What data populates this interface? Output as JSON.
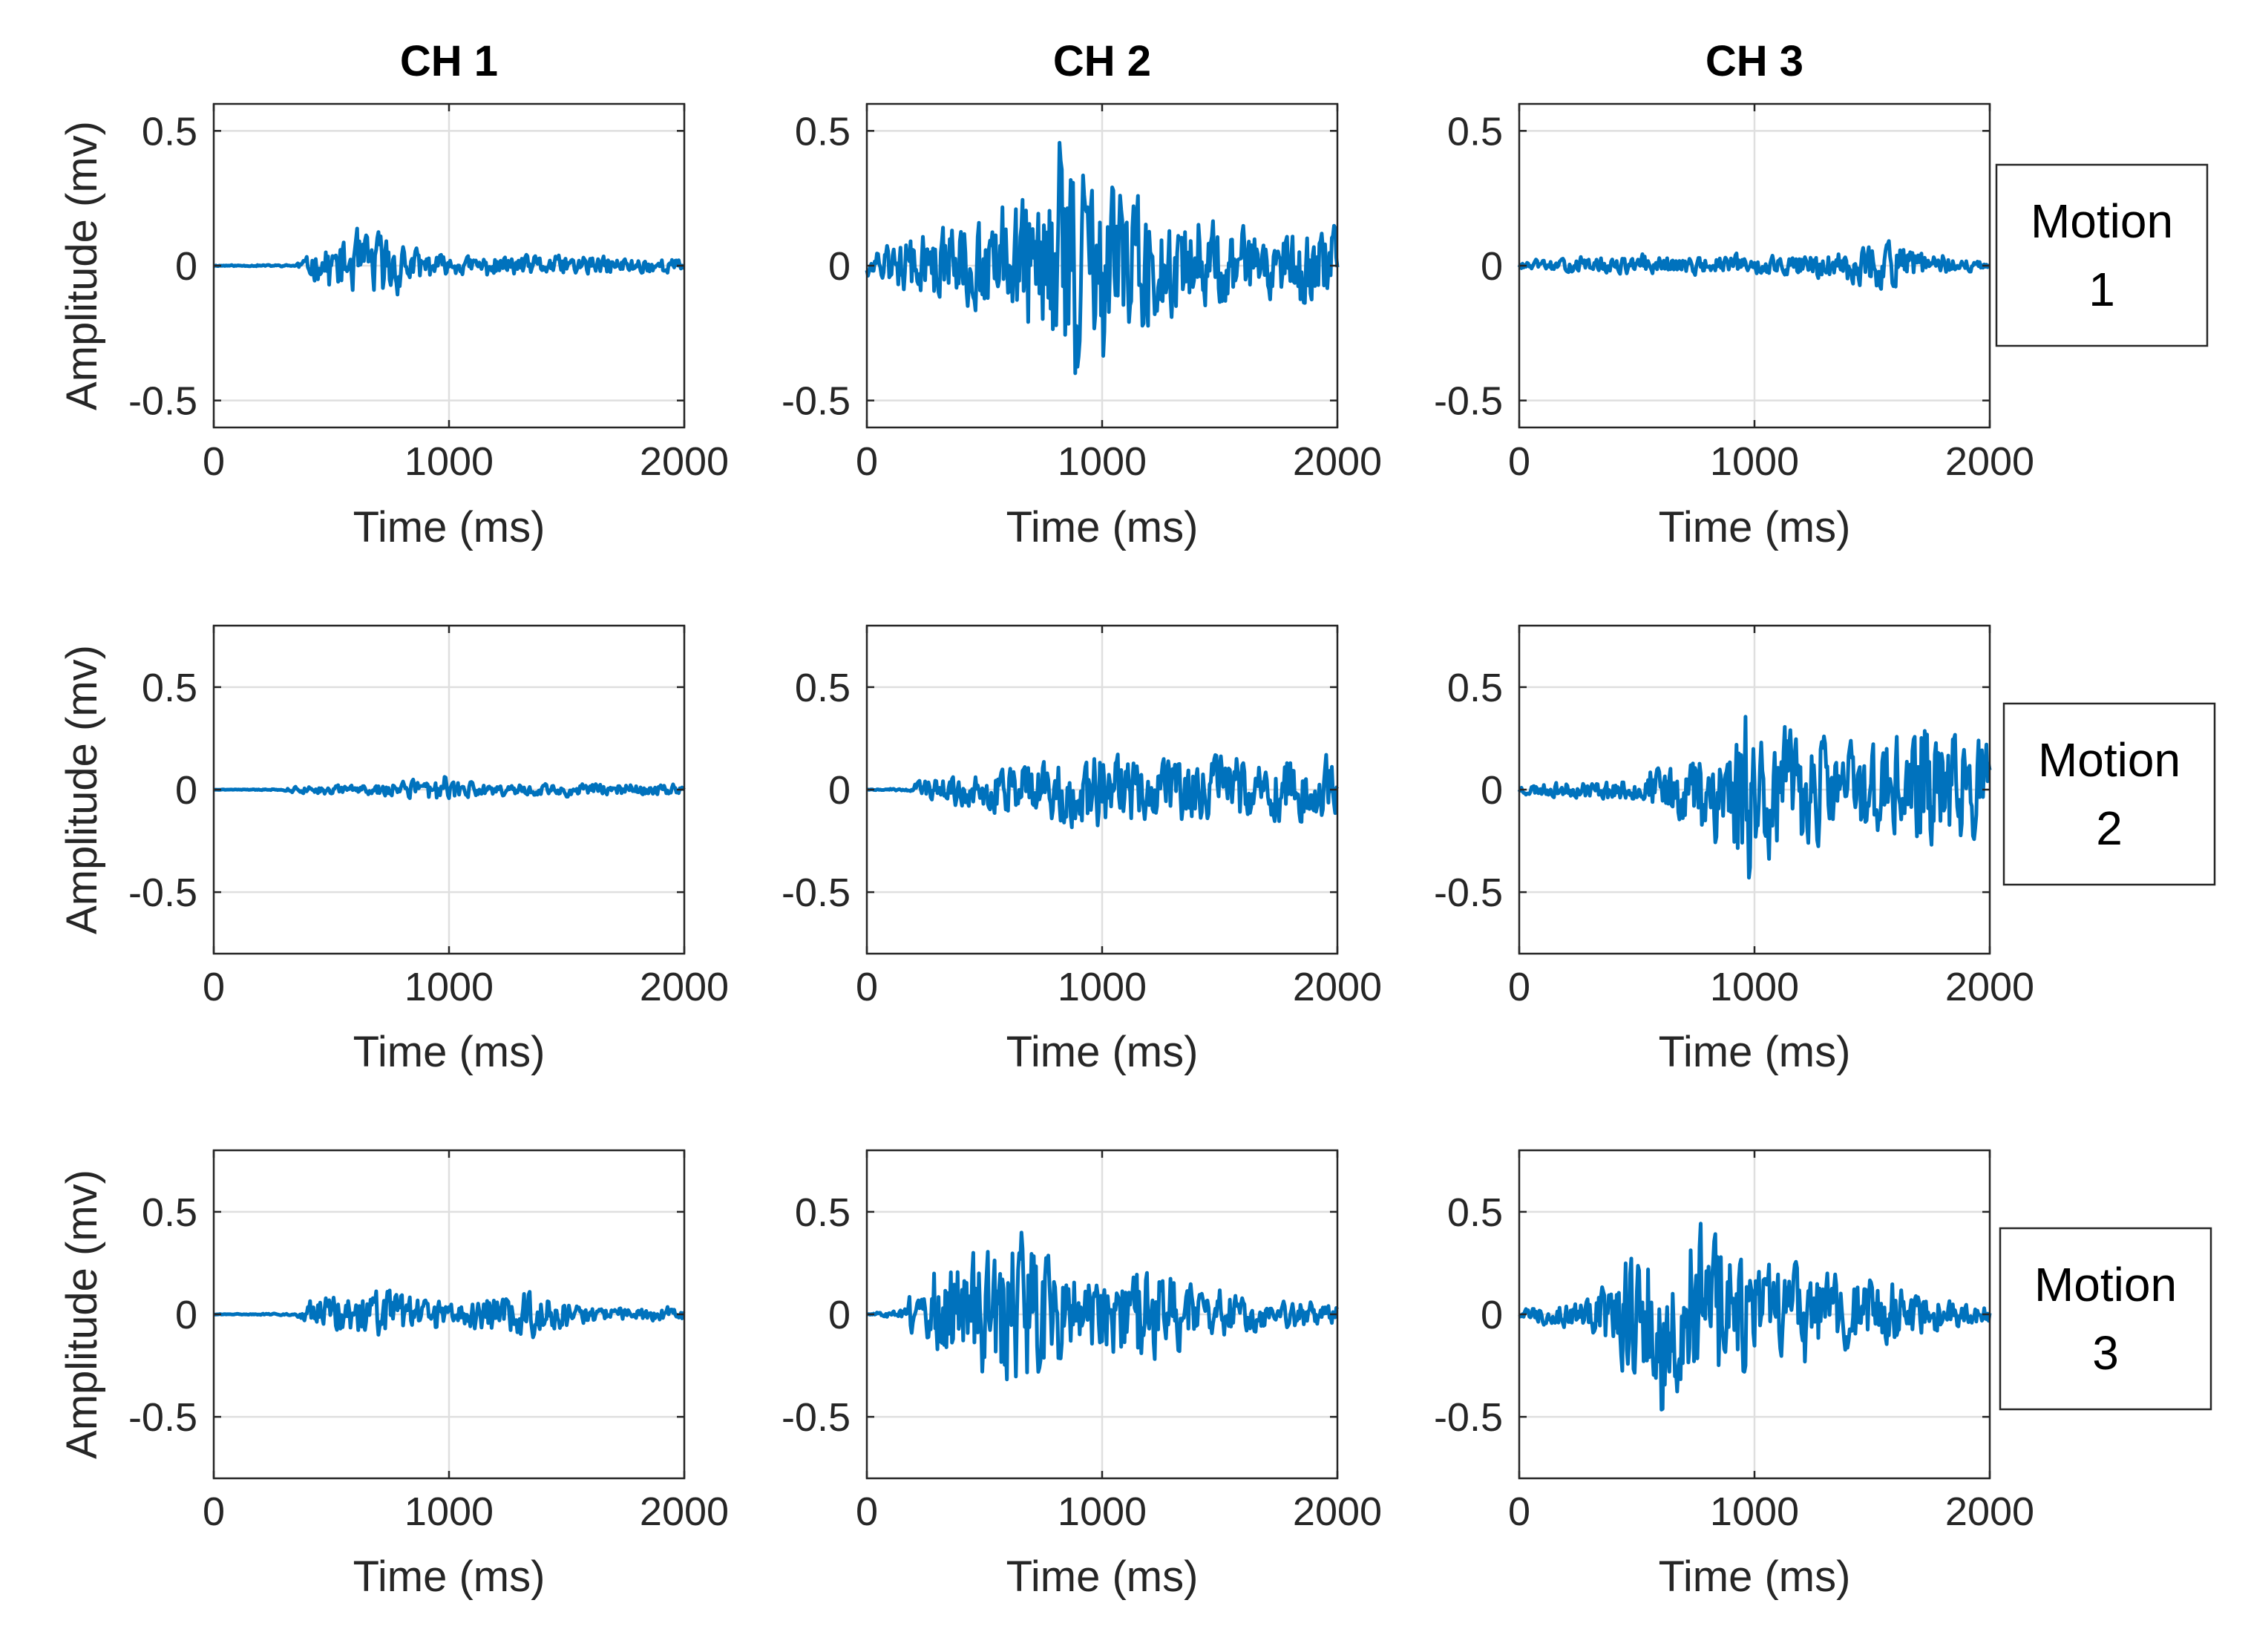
{
  "figure": {
    "channels": [
      "CH 1",
      "CH 2",
      "CH 3"
    ],
    "motions": [
      {
        "line1": "Motion",
        "line2": "1"
      },
      {
        "line1": "Motion",
        "line2": "2"
      },
      {
        "line1": "Motion",
        "line2": "3"
      }
    ],
    "ylabel": "Amplitude (mv)",
    "xlabel": "Time (ms)",
    "line_color": "#0072BD"
  },
  "chart_data": [
    {
      "type": "line",
      "channel": "CH 1",
      "motion": "Motion 1",
      "xlabel": "Time (ms)",
      "ylabel": "Amplitude (mv)",
      "xlim": [
        0,
        2000
      ],
      "ylim": [
        -0.6,
        0.6
      ],
      "xticks": [
        0,
        1000,
        2000
      ],
      "yticks": [
        -0.5,
        0,
        0.5
      ],
      "yticklabels": [
        "-0.5",
        "0",
        "0.5"
      ],
      "grid": true,
      "series": [
        {
          "name": "CH 1",
          "onset": 350,
          "envelope": [
            [
              0,
              0.01
            ],
            [
              350,
              0.02
            ],
            [
              500,
              0.12
            ],
            [
              700,
              0.2
            ],
            [
              850,
              0.1
            ],
            [
              1000,
              0.05
            ],
            [
              1400,
              0.06
            ],
            [
              2000,
              0.04
            ]
          ],
          "seed": 11
        }
      ]
    },
    {
      "type": "line",
      "channel": "CH 2",
      "motion": "Motion 1",
      "xlabel": "Time (ms)",
      "ylabel": "Amplitude (mv)",
      "xlim": [
        0,
        2000
      ],
      "ylim": [
        -0.6,
        0.6
      ],
      "xticks": [
        0,
        1000,
        2000
      ],
      "yticks": [
        -0.5,
        0,
        0.5
      ],
      "yticklabels": [
        "-0.5",
        "0",
        "0.5"
      ],
      "grid": true,
      "series": [
        {
          "name": "CH 2",
          "onset": 0,
          "envelope": [
            [
              0,
              0.06
            ],
            [
              300,
              0.22
            ],
            [
              600,
              0.3
            ],
            [
              850,
              0.6
            ],
            [
              1050,
              0.45
            ],
            [
              1300,
              0.3
            ],
            [
              1700,
              0.18
            ],
            [
              2000,
              0.22
            ]
          ],
          "seed": 12
        }
      ]
    },
    {
      "type": "line",
      "channel": "CH 3",
      "motion": "Motion 1",
      "xlabel": "Time (ms)",
      "ylabel": "Amplitude (mv)",
      "xlim": [
        0,
        2000
      ],
      "ylim": [
        -0.6,
        0.6
      ],
      "xticks": [
        0,
        1000,
        2000
      ],
      "yticks": [
        -0.5,
        0,
        0.5
      ],
      "yticklabels": [
        "-0.5",
        "0",
        "0.5"
      ],
      "grid": true,
      "series": [
        {
          "name": "CH 3",
          "onset": 0,
          "envelope": [
            [
              0,
              0.02
            ],
            [
              400,
              0.05
            ],
            [
              1000,
              0.05
            ],
            [
              1300,
              0.07
            ],
            [
              1550,
              0.14
            ],
            [
              1800,
              0.05
            ],
            [
              2000,
              0.02
            ]
          ],
          "seed": 13
        }
      ]
    },
    {
      "type": "line",
      "channel": "CH 1",
      "motion": "Motion 2",
      "xlabel": "Time (ms)",
      "ylabel": "Amplitude (mv)",
      "xlim": [
        0,
        2000
      ],
      "ylim": [
        -0.8,
        0.8
      ],
      "xticks": [
        0,
        1000,
        2000
      ],
      "yticks": [
        -0.5,
        0,
        0.5
      ],
      "yticklabels": [
        "-0.5",
        "0",
        "0.5"
      ],
      "grid": true,
      "series": [
        {
          "name": "CH 1",
          "onset": 300,
          "envelope": [
            [
              0,
              0.005
            ],
            [
              300,
              0.02
            ],
            [
              700,
              0.04
            ],
            [
              950,
              0.09
            ],
            [
              1200,
              0.04
            ],
            [
              1650,
              0.05
            ],
            [
              2000,
              0.03
            ]
          ],
          "seed": 21
        }
      ]
    },
    {
      "type": "line",
      "channel": "CH 2",
      "motion": "Motion 2",
      "xlabel": "Time (ms)",
      "ylabel": "Amplitude (mv)",
      "xlim": [
        0,
        2000
      ],
      "ylim": [
        -0.8,
        0.8
      ],
      "xticks": [
        0,
        1000,
        2000
      ],
      "yticks": [
        -0.5,
        0,
        0.5
      ],
      "yticklabels": [
        "-0.5",
        "0",
        "0.5"
      ],
      "grid": true,
      "series": [
        {
          "name": "CH 2",
          "onset": 200,
          "envelope": [
            [
              0,
              0.005
            ],
            [
              200,
              0.05
            ],
            [
              400,
              0.12
            ],
            [
              700,
              0.18
            ],
            [
              950,
              0.32
            ],
            [
              1300,
              0.2
            ],
            [
              1550,
              0.25
            ],
            [
              1800,
              0.22
            ],
            [
              2000,
              0.22
            ]
          ],
          "seed": 22
        }
      ]
    },
    {
      "type": "line",
      "channel": "CH 3",
      "motion": "Motion 2",
      "xlabel": "Time (ms)",
      "ylabel": "Amplitude (mv)",
      "xlim": [
        0,
        2000
      ],
      "ylim": [
        -0.8,
        0.8
      ],
      "xticks": [
        0,
        1000,
        2000
      ],
      "yticks": [
        -0.5,
        0,
        0.5
      ],
      "yticklabels": [
        "-0.5",
        "0",
        "0.5"
      ],
      "grid": true,
      "series": [
        {
          "name": "CH 3",
          "onset": 0,
          "envelope": [
            [
              0,
              0.04
            ],
            [
              500,
              0.08
            ],
            [
              700,
              0.25
            ],
            [
              950,
              0.6
            ],
            [
              1200,
              0.4
            ],
            [
              1450,
              0.35
            ],
            [
              1700,
              0.45
            ],
            [
              2000,
              0.35
            ]
          ],
          "seed": 23
        }
      ]
    },
    {
      "type": "line",
      "channel": "CH 1",
      "motion": "Motion 3",
      "xlabel": "Time (ms)",
      "ylabel": "Amplitude (mv)",
      "xlim": [
        0,
        2000
      ],
      "ylim": [
        -0.8,
        0.8
      ],
      "xticks": [
        0,
        1000,
        2000
      ],
      "yticks": [
        -0.5,
        0,
        0.5
      ],
      "yticklabels": [
        "-0.5",
        "0",
        "0.5"
      ],
      "grid": true,
      "series": [
        {
          "name": "CH 1",
          "onset": 350,
          "envelope": [
            [
              0,
              0.005
            ],
            [
              350,
              0.03
            ],
            [
              500,
              0.15
            ],
            [
              750,
              0.18
            ],
            [
              1000,
              0.08
            ],
            [
              1300,
              0.18
            ],
            [
              1600,
              0.06
            ],
            [
              2000,
              0.04
            ]
          ],
          "seed": 31
        }
      ]
    },
    {
      "type": "line",
      "channel": "CH 2",
      "motion": "Motion 3",
      "xlabel": "Time (ms)",
      "ylabel": "Amplitude (mv)",
      "xlim": [
        0,
        2000
      ],
      "ylim": [
        -0.8,
        0.8
      ],
      "xticks": [
        0,
        1000,
        2000
      ],
      "yticks": [
        -0.5,
        0,
        0.5
      ],
      "yticklabels": [
        "-0.5",
        "0",
        "0.5"
      ],
      "grid": true,
      "series": [
        {
          "name": "CH 2",
          "onset": 180,
          "envelope": [
            [
              0,
              0.005
            ],
            [
              180,
              0.2
            ],
            [
              450,
              0.45
            ],
            [
              650,
              0.6
            ],
            [
              900,
              0.3
            ],
            [
              1250,
              0.35
            ],
            [
              1400,
              0.2
            ],
            [
              1700,
              0.12
            ],
            [
              2000,
              0.08
            ]
          ],
          "seed": 32
        }
      ]
    },
    {
      "type": "line",
      "channel": "CH 3",
      "motion": "Motion 3",
      "xlabel": "Time (ms)",
      "ylabel": "Amplitude (mv)",
      "xlim": [
        0,
        2000
      ],
      "ylim": [
        -0.8,
        0.8
      ],
      "xticks": [
        0,
        1000,
        2000
      ],
      "yticks": [
        -0.5,
        0,
        0.5
      ],
      "yticklabels": [
        "-0.5",
        "0",
        "0.5"
      ],
      "grid": true,
      "series": [
        {
          "name": "CH 3",
          "onset": 0,
          "envelope": [
            [
              0,
              0.05
            ],
            [
              300,
              0.12
            ],
            [
              500,
              0.55
            ],
            [
              800,
              0.7
            ],
            [
              1000,
              0.4
            ],
            [
              1300,
              0.3
            ],
            [
              1550,
              0.25
            ],
            [
              1800,
              0.12
            ],
            [
              2000,
              0.06
            ]
          ],
          "seed": 33
        }
      ]
    }
  ]
}
